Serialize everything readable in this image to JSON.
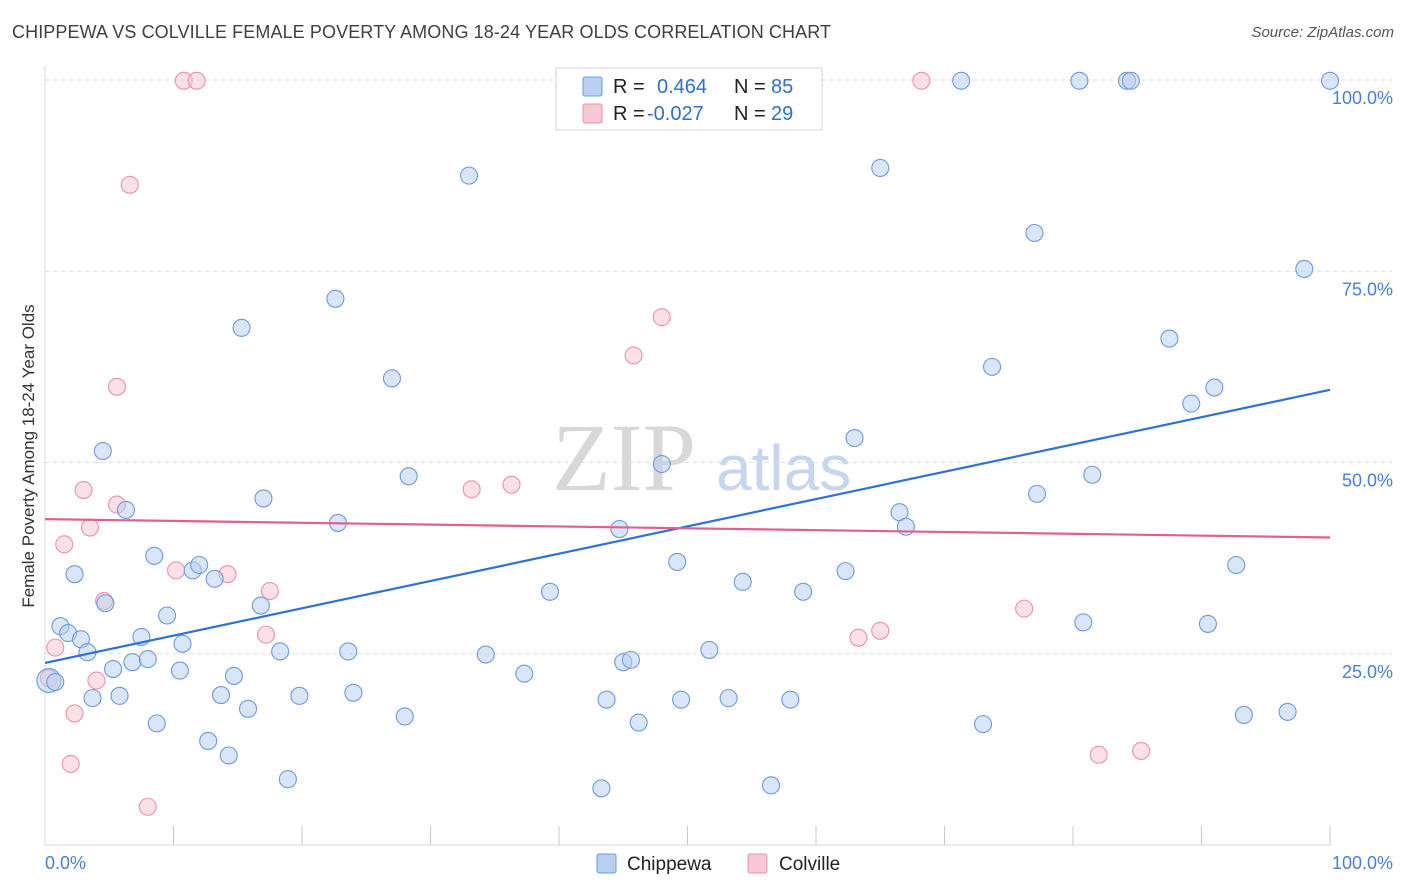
{
  "title": "CHIPPEWA VS COLVILLE FEMALE POVERTY AMONG 18-24 YEAR OLDS CORRELATION CHART",
  "source": "Source: ZipAtlas.com",
  "watermark": {
    "zip": "ZIP",
    "atlas": "atlas"
  },
  "legend": {
    "r_label": "R =",
    "n_label": "N =",
    "rows": [
      {
        "r": "0.464",
        "n": "85"
      },
      {
        "r": "-0.027",
        "n": "29"
      }
    ]
  },
  "colors": {
    "chippewa_fill": "#b9d0f3",
    "chippewa_stroke": "#6f9ae0",
    "chippewa_line": "#2f72d1",
    "colville_fill": "#f7c7d6",
    "colville_stroke": "#ec92ae",
    "colville_line": "#e0608f",
    "tick_text": "#4a7fd1",
    "grid": "#dddddd"
  },
  "chart_data": {
    "type": "scatter",
    "title": "CHIPPEWA VS COLVILLE FEMALE POVERTY AMONG 18-24 YEAR OLDS CORRELATION CHART",
    "xlabel": "",
    "ylabel": "Female Poverty Among 18-24 Year Olds",
    "xlim": [
      0,
      100
    ],
    "ylim": [
      0,
      103
    ],
    "y_ticks": [
      25,
      50,
      75,
      100
    ],
    "y_tick_labels": [
      "25.0%",
      "50.0%",
      "75.0%",
      "100.0%"
    ],
    "x_tick_labels": [
      "0.0%",
      "100.0%"
    ],
    "series": [
      {
        "name": "Chippewa",
        "r": 0.464,
        "n": 85,
        "trend": {
          "x": [
            0,
            100
          ],
          "y": [
            23.8,
            59.5
          ]
        },
        "points": [
          [
            0.3,
            21.5
          ],
          [
            0.8,
            21.3
          ],
          [
            1.2,
            28.6
          ],
          [
            1.8,
            27.7
          ],
          [
            2.3,
            35.4
          ],
          [
            2.8,
            26.9
          ],
          [
            3.3,
            25.2
          ],
          [
            3.7,
            19.2
          ],
          [
            4.5,
            51.5
          ],
          [
            4.7,
            31.6
          ],
          [
            5.3,
            23.0
          ],
          [
            5.8,
            19.5
          ],
          [
            6.3,
            43.8
          ],
          [
            6.8,
            23.9
          ],
          [
            7.5,
            27.2
          ],
          [
            8.0,
            24.3
          ],
          [
            8.5,
            37.8
          ],
          [
            8.7,
            15.9
          ],
          [
            9.5,
            30.0
          ],
          [
            10.5,
            22.8
          ],
          [
            10.7,
            26.3
          ],
          [
            11.5,
            35.9
          ],
          [
            12.0,
            36.6
          ],
          [
            12.7,
            13.6
          ],
          [
            13.2,
            34.8
          ],
          [
            13.7,
            19.6
          ],
          [
            14.3,
            11.7
          ],
          [
            14.7,
            22.1
          ],
          [
            15.3,
            67.6
          ],
          [
            15.8,
            17.8
          ],
          [
            16.8,
            31.3
          ],
          [
            17.0,
            45.3
          ],
          [
            18.3,
            25.3
          ],
          [
            18.9,
            8.6
          ],
          [
            19.8,
            19.5
          ],
          [
            22.6,
            71.4
          ],
          [
            22.8,
            42.1
          ],
          [
            23.6,
            25.3
          ],
          [
            24.0,
            19.9
          ],
          [
            27.0,
            61.0
          ],
          [
            28.0,
            16.8
          ],
          [
            28.3,
            48.2
          ],
          [
            33.0,
            87.5
          ],
          [
            34.3,
            24.9
          ],
          [
            37.3,
            22.4
          ],
          [
            39.3,
            33.1
          ],
          [
            43.3,
            7.4
          ],
          [
            43.7,
            19.0
          ],
          [
            44.7,
            41.3
          ],
          [
            45.0,
            23.9
          ],
          [
            45.6,
            24.2
          ],
          [
            46.2,
            16.0
          ],
          [
            48.0,
            49.8
          ],
          [
            49.2,
            37.0
          ],
          [
            49.5,
            19.0
          ],
          [
            51.7,
            25.5
          ],
          [
            53.2,
            19.2
          ],
          [
            54.3,
            34.4
          ],
          [
            56.5,
            7.8
          ],
          [
            58.0,
            19.0
          ],
          [
            59.0,
            33.1
          ],
          [
            62.3,
            35.8
          ],
          [
            63.0,
            53.2
          ],
          [
            65.0,
            88.5
          ],
          [
            66.5,
            43.5
          ],
          [
            67.0,
            41.6
          ],
          [
            71.3,
            99.9
          ],
          [
            73.0,
            15.8
          ],
          [
            73.7,
            62.5
          ],
          [
            77.0,
            80.0
          ],
          [
            77.2,
            45.9
          ],
          [
            80.5,
            99.9
          ],
          [
            80.8,
            29.1
          ],
          [
            81.5,
            48.4
          ],
          [
            84.2,
            99.9
          ],
          [
            84.5,
            99.9
          ],
          [
            87.5,
            66.2
          ],
          [
            89.2,
            57.7
          ],
          [
            90.5,
            28.9
          ],
          [
            91.0,
            59.8
          ],
          [
            92.7,
            36.6
          ],
          [
            93.3,
            17.0
          ],
          [
            96.7,
            17.4
          ],
          [
            98.0,
            75.3
          ],
          [
            100.0,
            99.9
          ]
        ]
      },
      {
        "name": "Colville",
        "r": -0.027,
        "n": 29,
        "trend": {
          "x": [
            0,
            100
          ],
          "y": [
            42.6,
            40.2
          ]
        },
        "points": [
          [
            0.3,
            21.8
          ],
          [
            0.8,
            25.8
          ],
          [
            1.5,
            39.3
          ],
          [
            2.0,
            10.6
          ],
          [
            2.3,
            17.2
          ],
          [
            3.0,
            46.4
          ],
          [
            3.5,
            41.5
          ],
          [
            4.0,
            21.5
          ],
          [
            4.6,
            31.9
          ],
          [
            5.6,
            44.5
          ],
          [
            5.6,
            59.9
          ],
          [
            6.6,
            86.3
          ],
          [
            8.0,
            5.0
          ],
          [
            10.2,
            35.9
          ],
          [
            10.8,
            99.9
          ],
          [
            11.8,
            99.9
          ],
          [
            14.2,
            35.4
          ],
          [
            17.2,
            27.5
          ],
          [
            17.5,
            33.2
          ],
          [
            33.2,
            46.5
          ],
          [
            36.3,
            47.1
          ],
          [
            45.8,
            64.0
          ],
          [
            48.0,
            69.0
          ],
          [
            63.3,
            27.1
          ],
          [
            65.0,
            28.0
          ],
          [
            68.2,
            99.9
          ],
          [
            76.2,
            30.9
          ],
          [
            82.0,
            11.8
          ],
          [
            85.3,
            12.3
          ]
        ]
      }
    ]
  }
}
